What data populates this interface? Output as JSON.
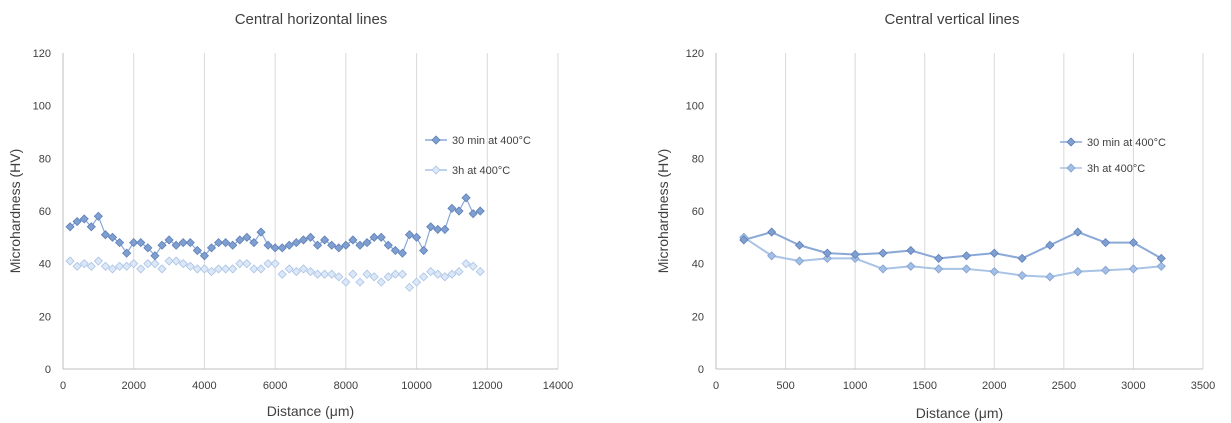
{
  "chart_data": [
    {
      "type": "scatter",
      "title": "Central horizontal lines",
      "xlabel": "Distance (μm)",
      "ylabel": "Microhardness (HV)",
      "xlim": [
        0,
        14000
      ],
      "ylim": [
        0,
        120
      ],
      "xticks": [
        "0",
        "2000",
        "4000",
        "6000",
        "8000",
        "10000",
        "12000",
        "14000"
      ],
      "yticks": [
        "0",
        "20",
        "40",
        "60",
        "80",
        "100",
        "120"
      ],
      "grid": "vertical",
      "legend": "right",
      "colors": {
        "series1": "#7f9fd0",
        "series1_edge": "#5d7fb8",
        "series2": "#dce8f7",
        "series2_edge": "#a9c3e6"
      },
      "series": [
        {
          "name": "30 min at 400°C",
          "x": [
            200,
            400,
            600,
            800,
            1000,
            1200,
            1400,
            1600,
            1800,
            2000,
            2200,
            2400,
            2600,
            2800,
            3000,
            3200,
            3400,
            3600,
            3800,
            4000,
            4200,
            4400,
            4600,
            4800,
            5000,
            5200,
            5400,
            5600,
            5800,
            6000,
            6200,
            6400,
            6600,
            6800,
            7000,
            7200,
            7400,
            7600,
            7800,
            8000,
            8200,
            8400,
            8600,
            8800,
            9000,
            9200,
            9400,
            9600,
            9800,
            10000,
            10200,
            10400,
            10600,
            10800,
            11000,
            11200,
            11400,
            11600,
            11800
          ],
          "y": [
            54,
            56,
            57,
            54,
            58,
            51,
            50,
            48,
            44,
            48,
            48,
            46,
            43,
            47,
            49,
            47,
            48,
            48,
            45,
            43,
            46,
            48,
            48,
            47,
            49,
            50,
            48,
            52,
            47,
            46,
            46,
            47,
            48,
            49,
            50,
            47,
            49,
            47,
            46,
            47,
            49,
            47,
            48,
            50,
            50,
            47,
            45,
            44,
            51,
            50,
            45,
            54,
            53,
            53,
            61,
            60,
            65,
            59,
            60
          ]
        },
        {
          "name": "3h at 400°C",
          "x": [
            200,
            400,
            600,
            800,
            1000,
            1200,
            1400,
            1600,
            1800,
            2000,
            2200,
            2400,
            2600,
            2800,
            3000,
            3200,
            3400,
            3600,
            3800,
            4000,
            4200,
            4400,
            4600,
            4800,
            5000,
            5200,
            5400,
            5600,
            5800,
            6000,
            6200,
            6400,
            6600,
            6800,
            7000,
            7200,
            7400,
            7600,
            7800,
            8000,
            8200,
            8400,
            8600,
            8800,
            9000,
            9200,
            9400,
            9600,
            9800,
            10000,
            10200,
            10400,
            10600,
            10800,
            11000,
            11200,
            11400,
            11600,
            11800
          ],
          "y": [
            41,
            39,
            40,
            39,
            41,
            39,
            38,
            39,
            39,
            40,
            38,
            40,
            40,
            38,
            41,
            41,
            40,
            39,
            38,
            38,
            37,
            38,
            38,
            38,
            40,
            40,
            38,
            38,
            40,
            40,
            36,
            38,
            37,
            38,
            37,
            36,
            36,
            36,
            35,
            33,
            36,
            33,
            36,
            35,
            33,
            35,
            36,
            36,
            31,
            33,
            35,
            37,
            36,
            35,
            36,
            37,
            40,
            39,
            37
          ]
        }
      ]
    },
    {
      "type": "line",
      "title": "Central vertical lines",
      "xlabel": "Distance (μm)",
      "ylabel": "Microhardness (HV)",
      "xlim": [
        0,
        3500
      ],
      "ylim": [
        0,
        120
      ],
      "xticks": [
        "0",
        "500",
        "1000",
        "1500",
        "2000",
        "2500",
        "3000",
        "3500"
      ],
      "yticks": [
        "0",
        "20",
        "40",
        "60",
        "80",
        "100",
        "120"
      ],
      "grid": "vertical",
      "legend": "right",
      "colors": {
        "series1": "#7f9fd0",
        "series1_edge": "#5d7fb8",
        "series2": "#a3bfe6",
        "series2_edge": "#7f9fd0"
      },
      "series": [
        {
          "name": "30 min at 400°C",
          "x": [
            200,
            400,
            600,
            800,
            1000,
            1200,
            1400,
            1600,
            1800,
            2000,
            2200,
            2400,
            2600,
            2800,
            3000,
            3200
          ],
          "y": [
            49,
            52,
            47,
            44,
            43.5,
            44,
            45,
            42,
            43,
            44,
            42,
            47,
            52,
            48,
            48,
            42
          ]
        },
        {
          "name": "3h at 400°C",
          "x": [
            200,
            400,
            600,
            800,
            1000,
            1200,
            1400,
            1600,
            1800,
            2000,
            2200,
            2400,
            2600,
            2800,
            3000,
            3200
          ],
          "y": [
            50,
            43,
            41,
            42,
            42,
            38,
            39,
            38,
            38,
            37,
            35.5,
            35,
            37,
            37.5,
            38,
            39
          ]
        }
      ]
    }
  ]
}
